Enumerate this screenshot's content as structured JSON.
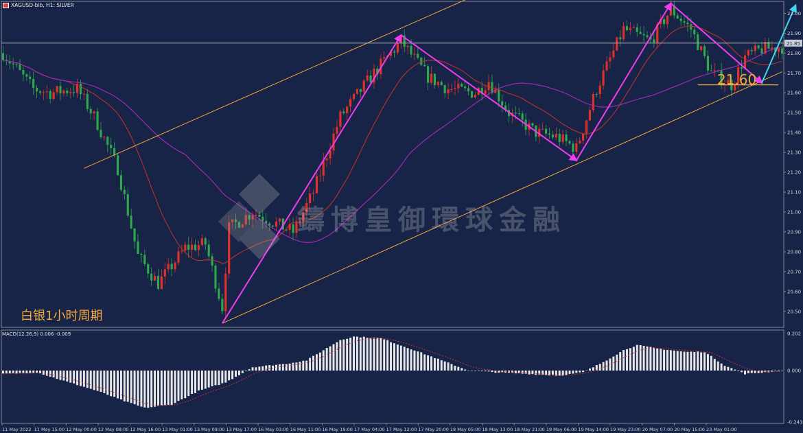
{
  "header": {
    "symbol": "XAGUSD-bib, H1:  SILVER"
  },
  "indicator": {
    "label": "MACD(12,26,9) 0.006 -0.009"
  },
  "caption": "白银1小时周期",
  "watermark": "鑄博皇御環球金融",
  "level_label": "21.60",
  "price_label": "21.85",
  "colors": {
    "background": "#182447",
    "bull": "#e0312b",
    "bear": "#2ea84b",
    "ma_fast": "#c7322c",
    "ma_slow": "#b02cc7",
    "zigzag": "#f03cf0",
    "projection": "#3fd8f0",
    "channel": "#f4a93a",
    "histogram": "#e8e8e8",
    "signal": "#d23030"
  },
  "chart_data": {
    "type": "candlestick",
    "price_axis": {
      "min": 20.42,
      "max": 22.06,
      "ticks": [
        "22.00",
        "21.90",
        "21.80",
        "21.70",
        "21.60",
        "21.50",
        "21.40",
        "21.30",
        "21.20",
        "21.10",
        "21.00",
        "20.90",
        "20.80",
        "20.70",
        "20.60",
        "20.50"
      ]
    },
    "macd_axis": {
      "ticks": [
        "0.202",
        "0.000",
        "-0.243"
      ]
    },
    "time_labels": [
      "11 May 2022",
      "11 May 15:00",
      "12 May 00:00",
      "12 May 08:00",
      "12 May 16:00",
      "13 May 01:00",
      "13 May 09:00",
      "13 May 17:00",
      "16 May 03:00",
      "16 May 11:00",
      "16 May 19:00",
      "17 May 04:00",
      "17 May 12:00",
      "17 May 20:00",
      "18 May 05:00",
      "18 May 13:00",
      "18 May 21:00",
      "19 May 06:00",
      "19 May 14:00",
      "19 May 23:00",
      "20 May 07:00",
      "20 May 15:00",
      "23 May 01:00"
    ],
    "current_price": 21.85,
    "support_level": 21.64,
    "zigzag": [
      {
        "bar": 65,
        "price": 20.44
      },
      {
        "bar": 118,
        "price": 21.89
      },
      {
        "bar": 170,
        "price": 21.26
      },
      {
        "bar": 198,
        "price": 22.05
      },
      {
        "bar": 225,
        "price": 21.65
      }
    ],
    "projection": [
      {
        "bar": 225,
        "price": 21.65
      },
      {
        "bar": 235,
        "price": 22.04
      }
    ],
    "channel_upper": [
      {
        "bar": 24,
        "price": 21.22
      },
      {
        "bar": 144,
        "price": 22.12
      }
    ],
    "channel_lower": [
      {
        "bar": 65,
        "price": 20.44
      },
      {
        "bar": 225,
        "price": 21.66
      }
    ],
    "path_anchors": [
      [
        0,
        21.8
      ],
      [
        9,
        21.62
      ],
      [
        14,
        21.6
      ],
      [
        22,
        21.62
      ],
      [
        27,
        21.48
      ],
      [
        34,
        21.22
      ],
      [
        40,
        20.78
      ],
      [
        46,
        20.64
      ],
      [
        54,
        20.82
      ],
      [
        60,
        20.84
      ],
      [
        65,
        20.52
      ],
      [
        67,
        20.92
      ],
      [
        74,
        21.0
      ],
      [
        80,
        20.95
      ],
      [
        86,
        20.9
      ],
      [
        92,
        21.1
      ],
      [
        100,
        21.48
      ],
      [
        110,
        21.7
      ],
      [
        118,
        21.86
      ],
      [
        126,
        21.68
      ],
      [
        132,
        21.62
      ],
      [
        140,
        21.6
      ],
      [
        144,
        21.66
      ],
      [
        150,
        21.5
      ],
      [
        158,
        21.4
      ],
      [
        164,
        21.38
      ],
      [
        170,
        21.32
      ],
      [
        176,
        21.62
      ],
      [
        184,
        21.92
      ],
      [
        192,
        21.86
      ],
      [
        198,
        22.02
      ],
      [
        204,
        21.92
      ],
      [
        210,
        21.7
      ],
      [
        216,
        21.64
      ],
      [
        220,
        21.78
      ],
      [
        225,
        21.82
      ],
      [
        231,
        21.83
      ]
    ],
    "macd_anchors": [
      [
        0,
        -0.02
      ],
      [
        10,
        -0.01
      ],
      [
        18,
        -0.06
      ],
      [
        28,
        -0.12
      ],
      [
        36,
        -0.18
      ],
      [
        42,
        -0.22
      ],
      [
        50,
        -0.2
      ],
      [
        58,
        -0.12
      ],
      [
        66,
        -0.07
      ],
      [
        74,
        0.02
      ],
      [
        84,
        0.04
      ],
      [
        90,
        0.06
      ],
      [
        100,
        0.18
      ],
      [
        104,
        0.2
      ],
      [
        112,
        0.19
      ],
      [
        122,
        0.12
      ],
      [
        130,
        0.06
      ],
      [
        138,
        0.0
      ],
      [
        146,
        -0.01
      ],
      [
        156,
        -0.02
      ],
      [
        165,
        -0.03
      ],
      [
        172,
        -0.01
      ],
      [
        178,
        0.05
      ],
      [
        184,
        0.12
      ],
      [
        188,
        0.15
      ],
      [
        194,
        0.13
      ],
      [
        202,
        0.11
      ],
      [
        208,
        0.11
      ],
      [
        214,
        0.03
      ],
      [
        220,
        -0.02
      ],
      [
        226,
        -0.01
      ],
      [
        231,
        0.0
      ]
    ]
  }
}
